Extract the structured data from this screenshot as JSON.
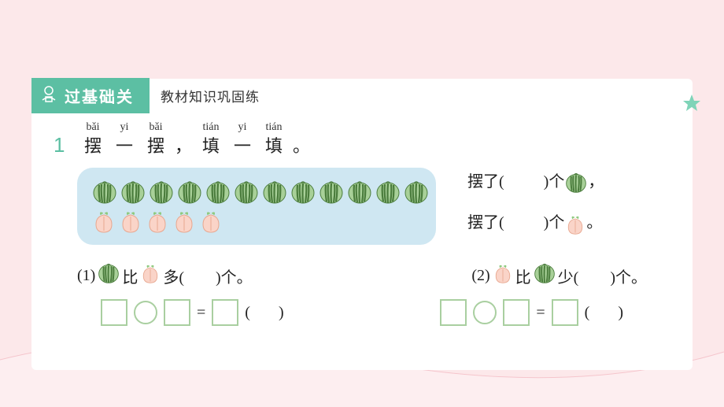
{
  "tab_label": "过基础关",
  "subtitle": "教材知识巩固练",
  "question_number": "1",
  "pinyin": [
    "bǎi",
    "yi",
    "bǎi",
    "",
    "tián",
    "yi",
    "tián"
  ],
  "pinyin_widths": [
    40,
    40,
    40,
    30,
    40,
    40,
    40
  ],
  "chars": [
    "摆",
    "一",
    "摆",
    "，",
    "填",
    "一",
    "填",
    "。"
  ],
  "char_widths": [
    40,
    40,
    40,
    30,
    40,
    40,
    40,
    30
  ],
  "watermelon_count": 12,
  "peach_count": 5,
  "right_line1_a": "摆了(",
  "right_line1_b": ")个",
  "right_line1_c": "，",
  "right_line2_a": "摆了(",
  "right_line2_b": ")个",
  "right_line2_c": "。",
  "sub1_a": "(1)",
  "sub1_b": "比",
  "sub1_c": "多(",
  "sub1_d": ")个。",
  "sub2_a": "(2)",
  "sub2_b": "比",
  "sub2_c": "少(",
  "sub2_d": ")个。",
  "eq_sign": "=",
  "eq_paren_l": "(",
  "eq_paren_r": ")",
  "colors": {
    "bg": "#fce8ea",
    "tab": "#5cbfa3",
    "fruit_box": "#cfe7f2",
    "box_border": "#a9cfa0",
    "wm_dark": "#4a7c3c",
    "wm_light": "#a8d098",
    "peach": "#fad4c8",
    "peach_leaf": "#8fc97f",
    "star": "#7fd4b8"
  }
}
